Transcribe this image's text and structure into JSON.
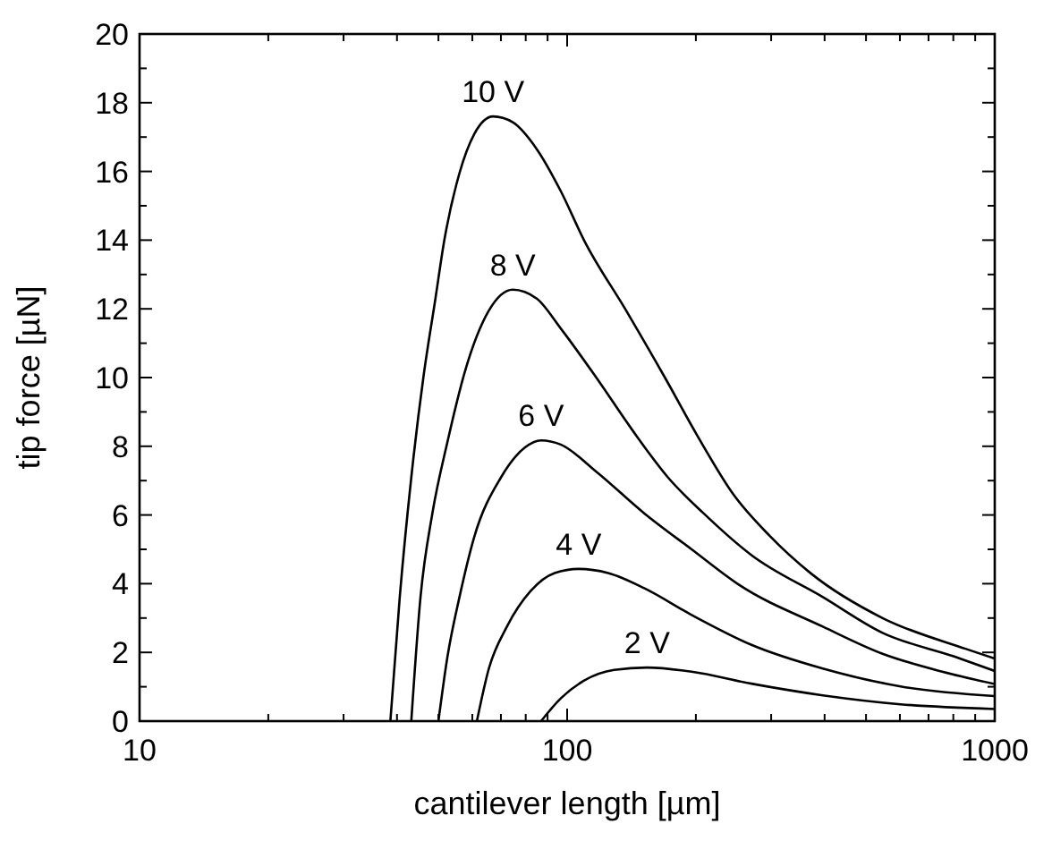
{
  "chart_data": {
    "type": "line",
    "xlabel": "cantilever length [µm]",
    "ylabel": "tip force [µN]",
    "log": "x",
    "xlim": [
      10,
      1000
    ],
    "ylim": [
      0,
      20
    ],
    "xticks": [
      10,
      {
        "value": 20,
        "label": null
      },
      {
        "value": 30,
        "label": null
      },
      {
        "value": 40,
        "label": null
      },
      {
        "value": 50,
        "label": null
      },
      {
        "value": 60,
        "label": null
      },
      {
        "value": 70,
        "label": null
      },
      {
        "value": 80,
        "label": null
      },
      {
        "value": 90,
        "label": null
      },
      100,
      {
        "value": 200,
        "label": null
      },
      {
        "value": 300,
        "label": null
      },
      {
        "value": 400,
        "label": null
      },
      {
        "value": 500,
        "label": null
      },
      {
        "value": 600,
        "label": null
      },
      {
        "value": 700,
        "label": null
      },
      {
        "value": 800,
        "label": null
      },
      {
        "value": 900,
        "label": null
      },
      1000
    ],
    "yticks": [
      0,
      {
        "value": 1,
        "label": null
      },
      2,
      {
        "value": 3,
        "label": null
      },
      4,
      {
        "value": 5,
        "label": null
      },
      6,
      {
        "value": 7,
        "label": null
      },
      8,
      {
        "value": 9,
        "label": null
      },
      10,
      {
        "value": 11,
        "label": null
      },
      12,
      {
        "value": 13,
        "label": null
      },
      14,
      {
        "value": 15,
        "label": null
      },
      16,
      {
        "value": 17,
        "label": null
      },
      18,
      {
        "value": 19,
        "label": null
      },
      20
    ],
    "grid": false,
    "marker": "none",
    "line_style": "solid",
    "series": [
      {
        "name": "10 V",
        "color": "#000000",
        "x": [
          38.6,
          40.6,
          43.2,
          46.1,
          49.2,
          51.6,
          56.0,
          60.6,
          67.1,
          74.6,
          84.9,
          96.6,
          109.6,
          137.4,
          169.3,
          201.8,
          244.7,
          297.2,
          371.5,
          546.5,
          857.1,
          1000
        ],
        "values": [
          0,
          3.61,
          7.09,
          10.0,
          12.3,
          13.99,
          15.95,
          17.08,
          17.6,
          17.43,
          16.65,
          15.43,
          13.99,
          11.95,
          10.0,
          8.3,
          6.6,
          5.4,
          4.3,
          3.0,
          2.1,
          1.82
        ]
      },
      {
        "name": "8 V",
        "color": "#000000",
        "x": [
          43.2,
          45.4,
          48.4,
          52.5,
          57.8,
          65.6,
          74.6,
          84.9,
          96.6,
          117.0,
          141.9,
          172.2,
          208.4,
          269.8,
          396.3,
          546.5,
          804.0,
          1000
        ],
        "values": [
          0,
          3.61,
          6.05,
          8.13,
          10.22,
          11.95,
          12.56,
          12.3,
          11.43,
          10.0,
          8.48,
          7.09,
          6.05,
          4.83,
          3.61,
          2.57,
          1.88,
          1.46
        ]
      },
      {
        "name": "6 V",
        "color": "#000000",
        "x": [
          50.0,
          52.5,
          56.0,
          60.6,
          70.0,
          79.6,
          86.9,
          96.6,
          117.0,
          151.4,
          195.5,
          252.8,
          396.3,
          546.5,
          753.6,
          1000
        ],
        "values": [
          0,
          1.88,
          3.61,
          5.35,
          7.09,
          7.96,
          8.17,
          8.05,
          7.26,
          6.05,
          5.0,
          3.96,
          2.75,
          1.96,
          1.44,
          1.08
        ]
      },
      {
        "name": "4 V",
        "color": "#000000",
        "x": [
          61.5,
          65.6,
          72.3,
          82.2,
          93.5,
          106.4,
          124.7,
          151.4,
          195.5,
          269.8,
          396.3,
          602.2,
          1000
        ],
        "values": [
          0,
          1.53,
          2.75,
          3.79,
          4.31,
          4.43,
          4.31,
          3.87,
          3.09,
          2.22,
          1.53,
          1.01,
          0.73
        ]
      },
      {
        "name": "2 V",
        "color": "#000000",
        "x": [
          86.9,
          96.6,
          109.6,
          128.8,
          153.8,
          195.5,
          269.8,
          396.3,
          602.2,
          1000
        ],
        "values": [
          0,
          0.66,
          1.18,
          1.49,
          1.56,
          1.44,
          1.09,
          0.75,
          0.49,
          0.35
        ]
      }
    ]
  }
}
